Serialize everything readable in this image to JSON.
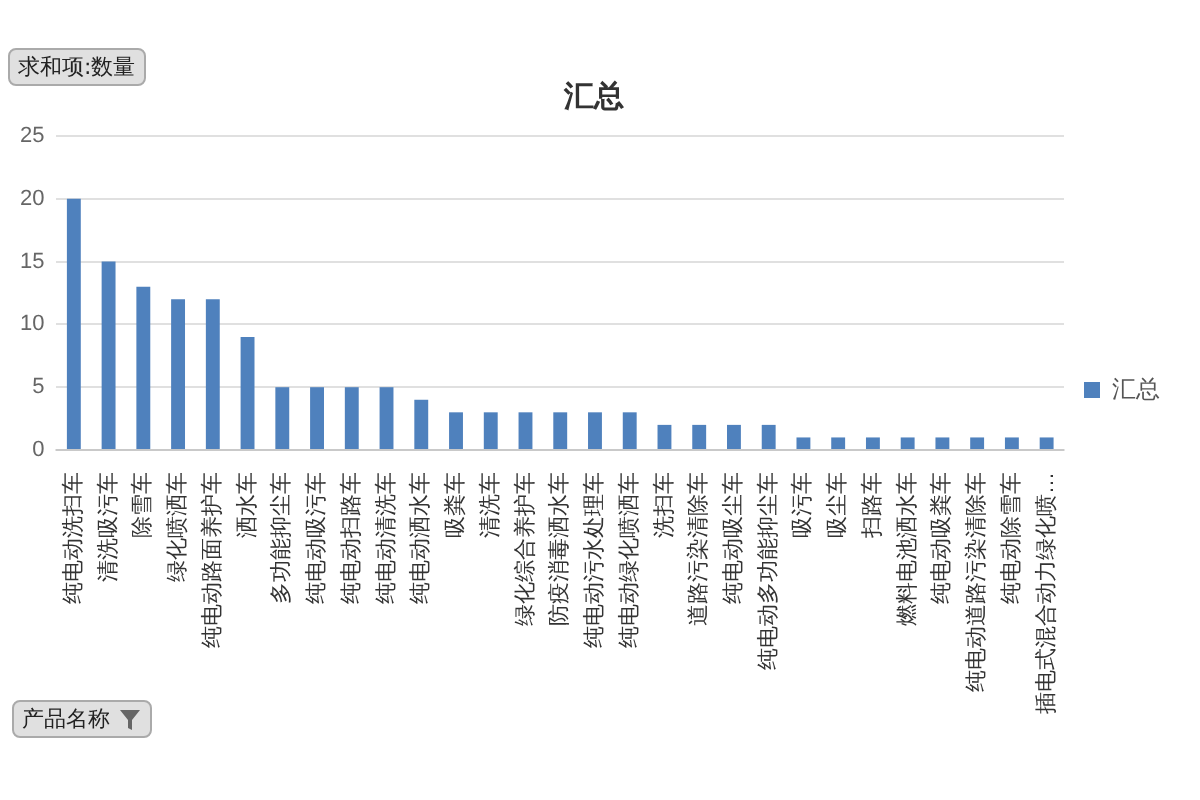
{
  "chart_data": {
    "type": "bar",
    "title": "汇总",
    "categories": [
      "纯电动洗扫车",
      "清洗吸污车",
      "除雪车",
      "绿化喷洒车",
      "纯电动路面养护车",
      "洒水车",
      "多功能抑尘车",
      "纯电动吸污车",
      "纯电动扫路车",
      "纯电动清洗车",
      "纯电动洒水车",
      "吸粪车",
      "清洗车",
      "绿化综合养护车",
      "防疫消毒洒水车",
      "纯电动污水处理车",
      "纯电动绿化喷洒车",
      "洗扫车",
      "道路污染清除车",
      "纯电动吸尘车",
      "纯电动多功能抑尘车",
      "吸污车",
      "吸尘车",
      "扫路车",
      "燃料电池洒水车",
      "纯电动吸粪车",
      "纯电动道路污染清除车",
      "纯电动除雪车",
      "插电式混合动力绿化喷…"
    ],
    "series": [
      {
        "name": "汇总",
        "color": "#4f81bd",
        "values": [
          20,
          15,
          13,
          12,
          12,
          9,
          5,
          5,
          5,
          5,
          4,
          3,
          3,
          3,
          3,
          3,
          3,
          2,
          2,
          2,
          2,
          1,
          1,
          1,
          1,
          1,
          1,
          1,
          1
        ]
      }
    ],
    "ylim": [
      0,
      25
    ],
    "yticks": [
      0,
      5,
      10,
      15,
      20,
      25
    ],
    "grid": "y",
    "legend": "right",
    "annotations": [
      "求和项:数量",
      "产品名称"
    ]
  }
}
